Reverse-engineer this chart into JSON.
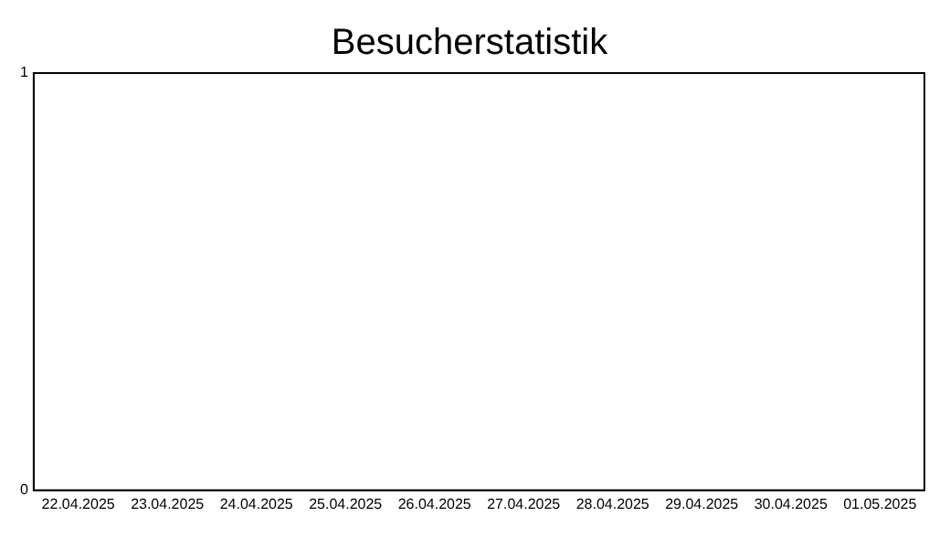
{
  "chart_data": {
    "type": "bar",
    "title": "Besucherstatistik",
    "categories": [
      "22.04.2025",
      "23.04.2025",
      "24.04.2025",
      "25.04.2025",
      "26.04.2025",
      "27.04.2025",
      "28.04.2025",
      "29.04.2025",
      "30.04.2025",
      "01.05.2025"
    ],
    "values": [
      0,
      0,
      0,
      0,
      0,
      0,
      0,
      0,
      0,
      0
    ],
    "ylim": [
      0,
      1
    ],
    "yticks": [
      0,
      1
    ],
    "grid": false,
    "legend": false
  }
}
